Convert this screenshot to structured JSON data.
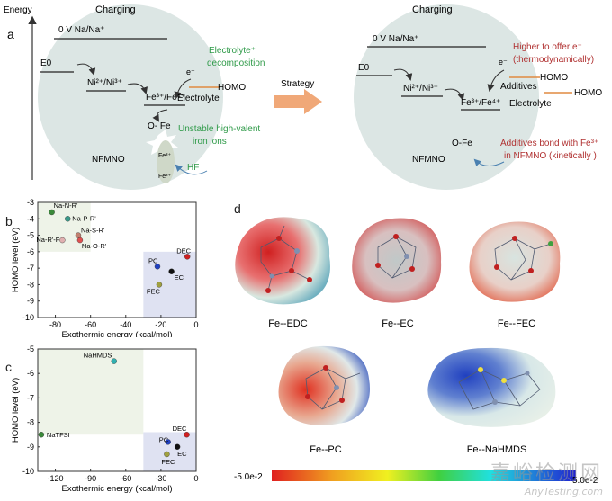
{
  "panel_a": {
    "label": "a",
    "energy_axis": "Energy",
    "left": {
      "title": "Charging",
      "ref_level": "0 V Na/Na⁺",
      "e0": "E0",
      "ni_couple": "Ni²⁺/Ni³⁺",
      "fe_couple": "Fe³⁺/Fe⁴⁺",
      "electron": "e⁻",
      "homo": "HOMO",
      "electrolyte": "Electrolyte",
      "decomp_1": "Electrolyte⁺",
      "decomp_2": "decomposition",
      "ofe": "O- Fe",
      "unstable_1": "Unstable high-valent",
      "unstable_2": "iron ions",
      "hf": "HF",
      "nfmno": "NFMNO",
      "fe3_a": "Fe³⁺",
      "fe3_b": "Fe³⁺"
    },
    "strategy": "Strategy",
    "right": {
      "title": "Charging",
      "ref_level": "0 V Na/Na⁺",
      "e0": "E0",
      "ni_couple": "Ni²⁺/Ni³⁺",
      "fe_couple": "Fe³⁺/Fe⁴⁺",
      "electron": "e⁻",
      "higher_1": "Higher to offer e⁻",
      "higher_2": "(thermodynamically)",
      "additives": "Additives",
      "homo_add": "HOMO",
      "homo_el": "HOMO",
      "electrolyte": "Electrolyte",
      "ofe": "O-Fe",
      "bond_1": "Additives bond with Fe³⁺",
      "bond_2": "in NFMNO (kinetically )",
      "nfmno": "NFMNO"
    },
    "colors": {
      "sphere": "#dce6e4",
      "green_text": "#2e9a48",
      "red_text": "#b03030",
      "arrow": "#f0a878",
      "homo_line": "#e08a40"
    }
  },
  "panel_b": {
    "label": "b",
    "chart_data": {
      "type": "scatter",
      "xlabel": "Exothermic energy (kcal/mol)",
      "ylabel": "HOMO level (eV)",
      "xlim": [
        -90,
        0
      ],
      "ylim": [
        -10,
        -3
      ],
      "xticks": [
        "-80",
        "-60",
        "-40",
        "-20",
        "0"
      ],
      "yticks": [
        "-3",
        "-4",
        "-5",
        "-6",
        "-7",
        "-8",
        "-9",
        "-10"
      ],
      "points": [
        {
          "label": "Na-N-R'",
          "x": -82,
          "y": -3.6,
          "color": "#3a8a3a"
        },
        {
          "label": "Na-P-R'",
          "x": -73,
          "y": -4.0,
          "color": "#3a9a8a"
        },
        {
          "label": "Na-S-R'",
          "x": -67,
          "y": -5.0,
          "color": "#c08070"
        },
        {
          "label": "Na-R'-F",
          "x": -76,
          "y": -5.3,
          "color": "#e0b0b0"
        },
        {
          "label": "Na-O-R'",
          "x": -66,
          "y": -5.3,
          "color": "#e05050"
        },
        {
          "label": "DEC",
          "x": -5,
          "y": -6.3,
          "color": "#d02020"
        },
        {
          "label": "PC",
          "x": -22,
          "y": -6.9,
          "color": "#2040c0"
        },
        {
          "label": "EC",
          "x": -14,
          "y": -7.2,
          "color": "#101010"
        },
        {
          "label": "FEC",
          "x": -21,
          "y": -8.0,
          "color": "#a0a040"
        }
      ]
    }
  },
  "panel_c": {
    "label": "c",
    "chart_data": {
      "type": "scatter",
      "xlabel": "Exothermic energy (kcal/mol)",
      "ylabel": "HOMO level (eV)",
      "xlim": [
        -135,
        0
      ],
      "ylim": [
        -10,
        -5
      ],
      "xticks": [
        "-120",
        "-90",
        "-60",
        "-30",
        "0"
      ],
      "yticks": [
        "-5",
        "-6",
        "-7",
        "-8",
        "-9",
        "-10"
      ],
      "points": [
        {
          "label": "NaHMDS",
          "x": -70,
          "y": -5.5,
          "color": "#30b0b0"
        },
        {
          "label": "NaTFSI",
          "x": -132,
          "y": -8.5,
          "color": "#3a8a3a"
        },
        {
          "label": "DEC",
          "x": -8,
          "y": -8.5,
          "color": "#d02020"
        },
        {
          "label": "PC",
          "x": -24,
          "y": -8.8,
          "color": "#2040c0"
        },
        {
          "label": "EC",
          "x": -16,
          "y": -9.0,
          "color": "#101010"
        },
        {
          "label": "FEC",
          "x": -25,
          "y": -9.3,
          "color": "#a0a040"
        }
      ]
    }
  },
  "panel_d": {
    "label": "d",
    "molecules": [
      {
        "caption": "Fe--EDC"
      },
      {
        "caption": "Fe--EC"
      },
      {
        "caption": "Fe--FEC"
      },
      {
        "caption": "Fe--PC"
      },
      {
        "caption": "Fe--NaHMDS"
      }
    ],
    "scale_min": "-5.0e-2",
    "scale_max": "5.0e-2"
  },
  "watermark": {
    "cn": "嘉峪检测网",
    "en": "AnyTesting.com"
  }
}
